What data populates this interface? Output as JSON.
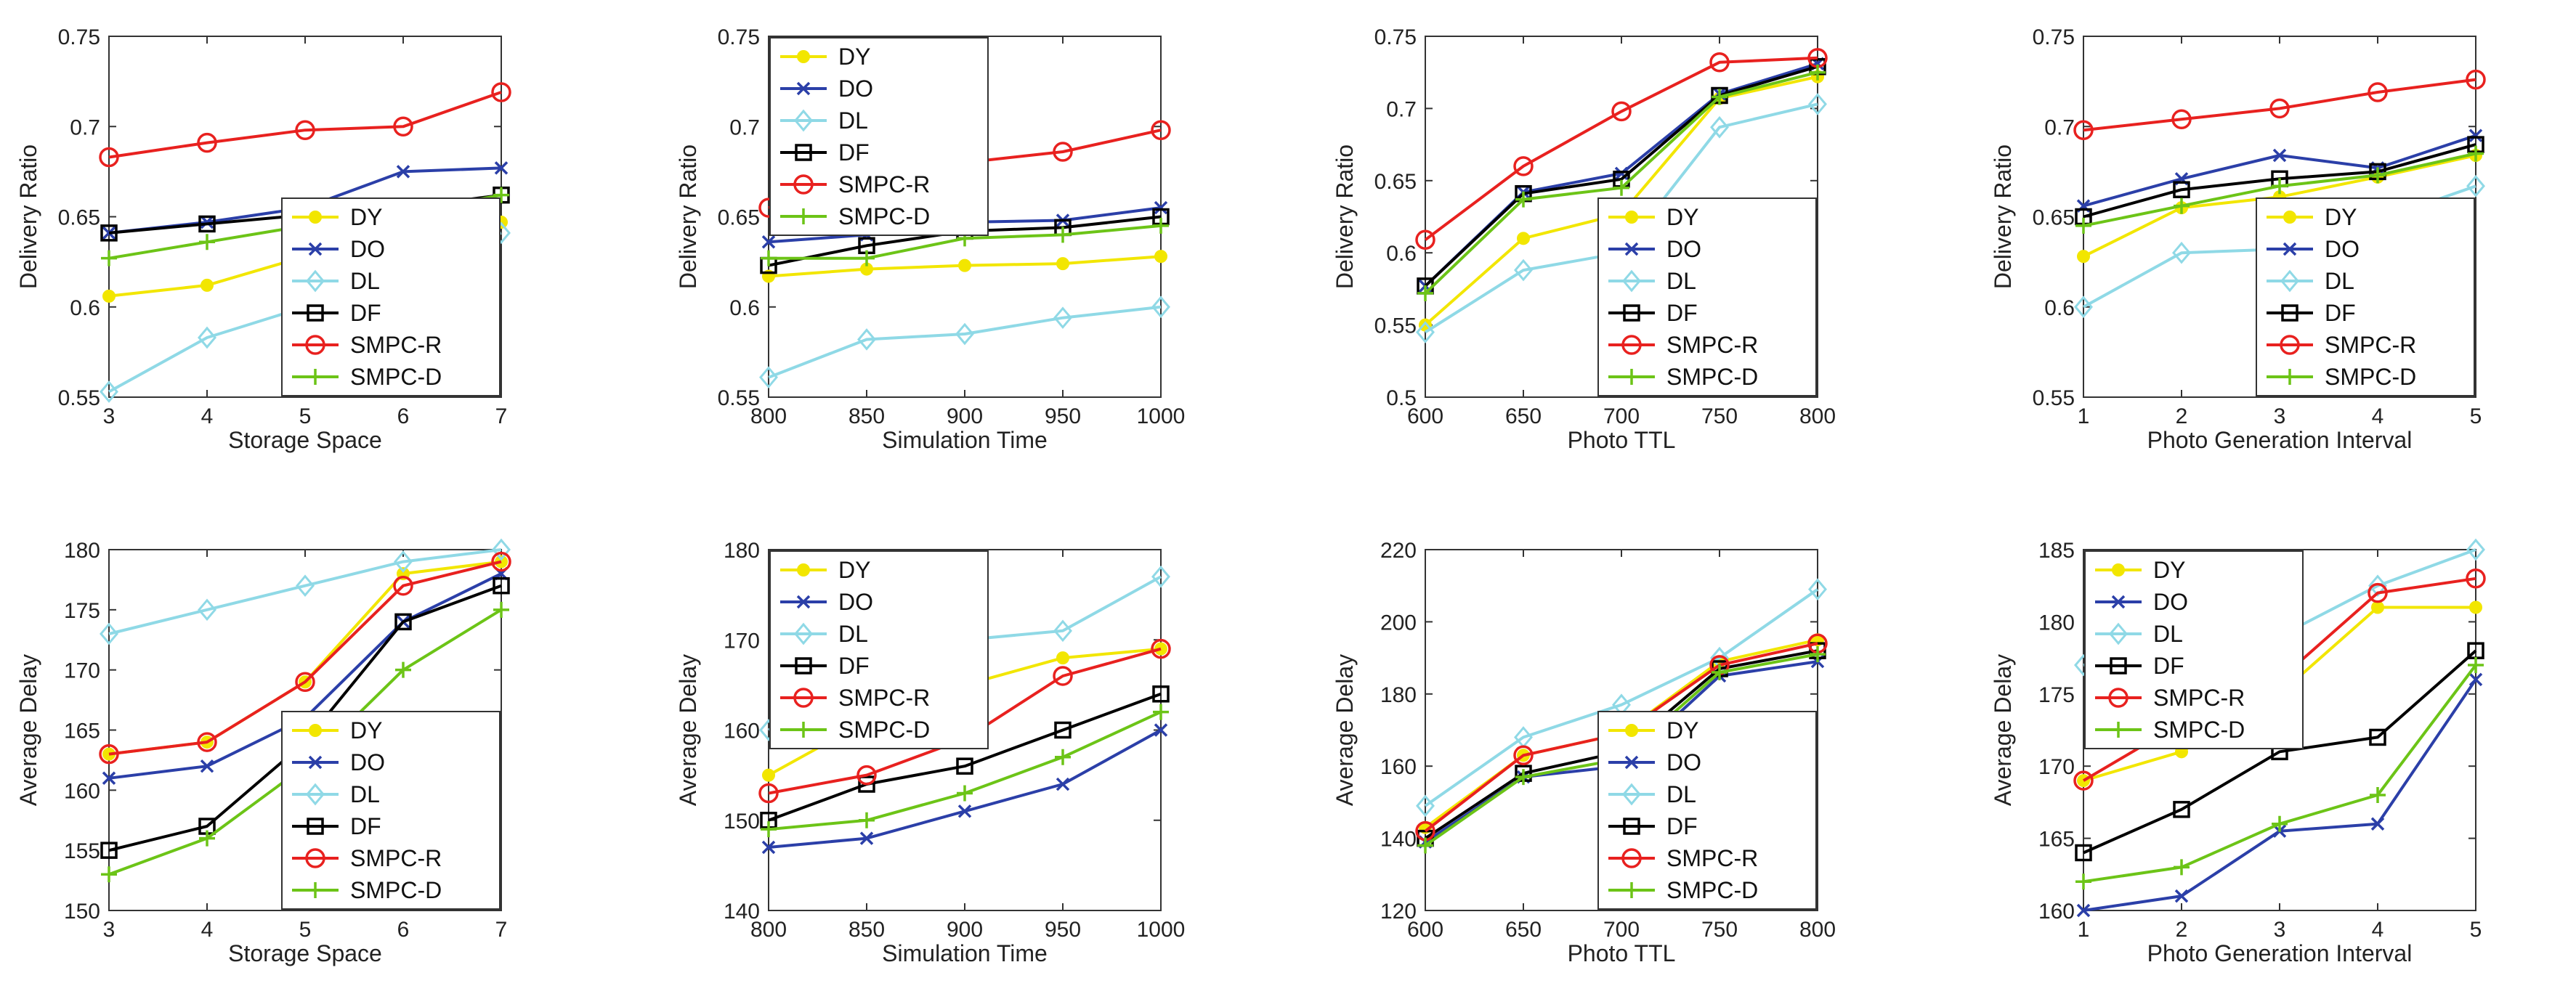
{
  "colors": {
    "DY": "#f2e600",
    "DO": "#2b3fa8",
    "DL": "#8fd9e6",
    "DF": "#000000",
    "SMPC-R": "#e8211f",
    "SMPC-D": "#6cc417"
  },
  "markers": {
    "DY": "dot",
    "DO": "x",
    "DL": "diamond",
    "DF": "square",
    "SMPC-R": "circle",
    "SMPC-D": "plus"
  },
  "chart_data": [
    {
      "type": "line",
      "xlabel": "Storage Space",
      "ylabel": "Delivery Ratio",
      "x": [
        3,
        4,
        5,
        6,
        7
      ],
      "xlim": [
        3,
        7
      ],
      "ylim": [
        0.55,
        0.75
      ],
      "xticks": [
        "3",
        "4",
        "5",
        "6",
        "7"
      ],
      "yticks": [
        "0.55",
        "0.6",
        "0.65",
        "0.7",
        "0.75"
      ],
      "legend": "lower-right",
      "series": [
        {
          "name": "DY",
          "values": [
            0.606,
            0.612,
            0.628,
            0.64,
            0.647
          ]
        },
        {
          "name": "DO",
          "values": [
            0.641,
            0.647,
            0.655,
            0.675,
            0.677
          ]
        },
        {
          "name": "DL",
          "values": [
            0.553,
            0.583,
            0.6,
            0.627,
            0.641
          ]
        },
        {
          "name": "DF",
          "values": [
            0.641,
            0.646,
            0.651,
            0.655,
            0.662
          ]
        },
        {
          "name": "SMPC-R",
          "values": [
            0.683,
            0.691,
            0.698,
            0.7,
            0.719
          ]
        },
        {
          "name": "SMPC-D",
          "values": [
            0.627,
            0.636,
            0.645,
            0.652,
            0.662
          ]
        }
      ]
    },
    {
      "type": "line",
      "xlabel": "Simulation Time",
      "ylabel": "Delivery Ratio",
      "x": [
        800,
        850,
        900,
        950,
        1000
      ],
      "xlim": [
        800,
        1000
      ],
      "ylim": [
        0.55,
        0.75
      ],
      "xticks": [
        "800",
        "850",
        "900",
        "950",
        "1000"
      ],
      "yticks": [
        "0.55",
        "0.6",
        "0.65",
        "0.7",
        "0.75"
      ],
      "legend": "top-left",
      "series": [
        {
          "name": "DY",
          "values": [
            0.617,
            0.621,
            0.623,
            0.624,
            0.628
          ]
        },
        {
          "name": "DO",
          "values": [
            0.636,
            0.64,
            0.647,
            0.648,
            0.655
          ]
        },
        {
          "name": "DL",
          "values": [
            0.561,
            0.582,
            0.585,
            0.594,
            0.6
          ]
        },
        {
          "name": "DF",
          "values": [
            0.623,
            0.634,
            0.642,
            0.644,
            0.65
          ]
        },
        {
          "name": "SMPC-R",
          "values": [
            0.655,
            0.668,
            0.68,
            0.686,
            0.698
          ]
        },
        {
          "name": "SMPC-D",
          "values": [
            0.627,
            0.627,
            0.638,
            0.64,
            0.645
          ]
        }
      ]
    },
    {
      "type": "line",
      "xlabel": "Photo TTL",
      "ylabel": "Delivery Ratio",
      "x": [
        600,
        650,
        700,
        750,
        800
      ],
      "xlim": [
        600,
        800
      ],
      "ylim": [
        0.5,
        0.75
      ],
      "xticks": [
        "600",
        "650",
        "700",
        "750",
        "800"
      ],
      "yticks": [
        "0.5",
        "0.55",
        "0.6",
        "0.65",
        "0.7",
        "0.75"
      ],
      "legend": "lower-right",
      "series": [
        {
          "name": "DY",
          "values": [
            0.55,
            0.61,
            0.627,
            0.707,
            0.722
          ]
        },
        {
          "name": "DO",
          "values": [
            0.577,
            0.642,
            0.655,
            0.71,
            0.731
          ]
        },
        {
          "name": "DL",
          "values": [
            0.545,
            0.588,
            0.6,
            0.687,
            0.703
          ]
        },
        {
          "name": "DF",
          "values": [
            0.577,
            0.641,
            0.651,
            0.709,
            0.729
          ]
        },
        {
          "name": "SMPC-R",
          "values": [
            0.609,
            0.66,
            0.698,
            0.732,
            0.735
          ]
        },
        {
          "name": "SMPC-D",
          "values": [
            0.572,
            0.637,
            0.645,
            0.708,
            0.725
          ]
        }
      ]
    },
    {
      "type": "line",
      "xlabel": "Photo Generation Interval",
      "ylabel": "Delivery Ratio",
      "x": [
        1,
        2,
        3,
        4,
        5
      ],
      "xlim": [
        1,
        5
      ],
      "ylim": [
        0.55,
        0.75
      ],
      "xticks": [
        "1",
        "2",
        "3",
        "4",
        "5"
      ],
      "yticks": [
        "0.55",
        "0.6",
        "0.65",
        "0.7",
        "0.75"
      ],
      "legend": "lower-right",
      "series": [
        {
          "name": "DY",
          "values": [
            0.628,
            0.655,
            0.661,
            0.672,
            0.684
          ]
        },
        {
          "name": "DO",
          "values": [
            0.656,
            0.671,
            0.684,
            0.677,
            0.695
          ]
        },
        {
          "name": "DL",
          "values": [
            0.6,
            0.63,
            0.632,
            0.648,
            0.667
          ]
        },
        {
          "name": "DF",
          "values": [
            0.65,
            0.665,
            0.671,
            0.675,
            0.69
          ]
        },
        {
          "name": "SMPC-R",
          "values": [
            0.698,
            0.704,
            0.71,
            0.719,
            0.726
          ]
        },
        {
          "name": "SMPC-D",
          "values": [
            0.645,
            0.656,
            0.667,
            0.673,
            0.685
          ]
        }
      ]
    },
    {
      "type": "line",
      "xlabel": "Storage Space",
      "ylabel": "Average Delay",
      "x": [
        3,
        4,
        5,
        6,
        7
      ],
      "xlim": [
        3,
        7
      ],
      "ylim": [
        150,
        180
      ],
      "xticks": [
        "3",
        "4",
        "5",
        "6",
        "7"
      ],
      "yticks": [
        "150",
        "155",
        "160",
        "165",
        "170",
        "175",
        "180"
      ],
      "legend": "lower-right",
      "series": [
        {
          "name": "DY",
          "values": [
            163,
            164,
            169,
            178,
            179
          ]
        },
        {
          "name": "DO",
          "values": [
            161,
            162,
            166,
            174,
            178
          ]
        },
        {
          "name": "DL",
          "values": [
            173,
            175,
            177,
            179,
            180
          ]
        },
        {
          "name": "DF",
          "values": [
            155,
            157,
            164,
            174,
            177
          ]
        },
        {
          "name": "SMPC-R",
          "values": [
            163,
            164,
            169,
            177,
            179
          ]
        },
        {
          "name": "SMPC-D",
          "values": [
            153,
            156,
            162,
            170,
            175
          ]
        }
      ]
    },
    {
      "type": "line",
      "xlabel": "Simulation Time",
      "ylabel": "Average Delay",
      "x": [
        800,
        850,
        900,
        950,
        1000
      ],
      "xlim": [
        800,
        1000
      ],
      "ylim": [
        140,
        180
      ],
      "xticks": [
        "800",
        "850",
        "900",
        "950",
        "1000"
      ],
      "yticks": [
        "140",
        "150",
        "160",
        "170",
        "180"
      ],
      "legend": "top-left",
      "series": [
        {
          "name": "DY",
          "values": [
            155,
            161,
            165,
            168,
            169
          ]
        },
        {
          "name": "DO",
          "values": [
            147,
            148,
            151,
            154,
            160
          ]
        },
        {
          "name": "DL",
          "values": [
            160,
            167,
            170,
            171,
            177
          ]
        },
        {
          "name": "DF",
          "values": [
            150,
            154,
            156,
            160,
            164
          ]
        },
        {
          "name": "SMPC-R",
          "values": [
            153,
            155,
            159,
            166,
            169
          ]
        },
        {
          "name": "SMPC-D",
          "values": [
            149,
            150,
            153,
            157,
            162
          ]
        }
      ]
    },
    {
      "type": "line",
      "xlabel": "Photo TTL",
      "ylabel": "Average Delay",
      "x": [
        600,
        650,
        700,
        750,
        800
      ],
      "xlim": [
        600,
        800
      ],
      "ylim": [
        120,
        220
      ],
      "xticks": [
        "600",
        "650",
        "700",
        "750",
        "800"
      ],
      "yticks": [
        "120",
        "140",
        "160",
        "180",
        "200",
        "220"
      ],
      "legend": "lower-right",
      "series": [
        {
          "name": "DY",
          "values": [
            143,
            163,
            169,
            189,
            195
          ]
        },
        {
          "name": "DO",
          "values": [
            139,
            157,
            160,
            185,
            189
          ]
        },
        {
          "name": "DL",
          "values": [
            149,
            168,
            177,
            190,
            209
          ]
        },
        {
          "name": "DF",
          "values": [
            140,
            158,
            164,
            187,
            192
          ]
        },
        {
          "name": "SMPC-R",
          "values": [
            142,
            163,
            169,
            188,
            194
          ]
        },
        {
          "name": "SMPC-D",
          "values": [
            138,
            157,
            162,
            186,
            191
          ]
        }
      ]
    },
    {
      "type": "line",
      "xlabel": "Photo Generation Interval",
      "ylabel": "Average Delay",
      "x": [
        1,
        2,
        3,
        4,
        5
      ],
      "xlim": [
        1,
        5
      ],
      "ylim": [
        160,
        185
      ],
      "xticks": [
        "1",
        "2",
        "3",
        "4",
        "5"
      ],
      "yticks": [
        "160",
        "165",
        "170",
        "175",
        "180",
        "185"
      ],
      "legend": "top-left",
      "series": [
        {
          "name": "DY",
          "values": [
            169,
            171,
            175,
            181,
            181
          ]
        },
        {
          "name": "DO",
          "values": [
            160,
            161,
            165.5,
            166,
            176
          ]
        },
        {
          "name": "DL",
          "values": [
            177,
            178,
            179,
            182.5,
            185
          ]
        },
        {
          "name": "DF",
          "values": [
            164,
            167,
            171,
            172,
            178
          ]
        },
        {
          "name": "SMPC-R",
          "values": [
            169,
            173,
            176,
            182,
            183
          ]
        },
        {
          "name": "SMPC-D",
          "values": [
            162,
            163,
            166,
            168,
            177
          ]
        }
      ]
    }
  ]
}
